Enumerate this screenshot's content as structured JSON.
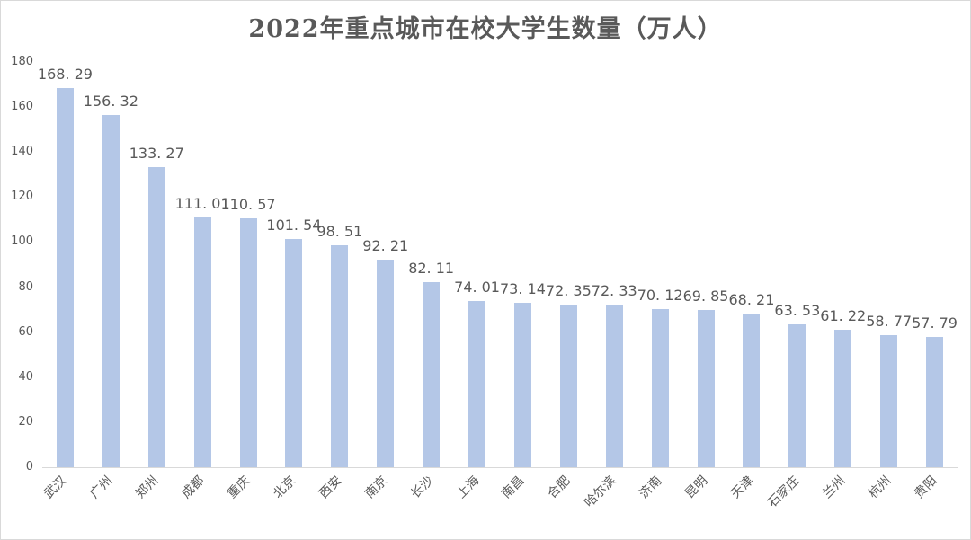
{
  "chart_data": {
    "type": "bar",
    "title": "2022年重点城市在校大学生数量（万人）",
    "categories": [
      "武汉",
      "广州",
      "郑州",
      "成都",
      "重庆",
      "北京",
      "西安",
      "南京",
      "长沙",
      "上海",
      "南昌",
      "合肥",
      "哈尔滨",
      "济南",
      "昆明",
      "天津",
      "石家庄",
      "兰州",
      "杭州",
      "贵阳"
    ],
    "values": [
      168.29,
      156.32,
      133.27,
      111.01,
      110.57,
      101.54,
      98.51,
      92.21,
      82.11,
      74.01,
      73.14,
      72.35,
      72.33,
      70.12,
      69.85,
      68.21,
      63.53,
      61.22,
      58.77,
      57.79
    ],
    "xlabel": "",
    "ylabel": "",
    "ylim": [
      0,
      180
    ],
    "ytick_step": 20,
    "ytick_labels": [
      "0",
      "20",
      "40",
      "60",
      "80",
      "100",
      "120",
      "140",
      "160",
      "180"
    ],
    "grid": false,
    "legend": "none",
    "data_labels": true,
    "category_label_rotation": -45,
    "colors": {
      "bar_fill": "#b4c7e7",
      "text": "#595959",
      "axis_line": "#d9d9d9",
      "frame_border": "#d9d9d9",
      "background": "#ffffff"
    }
  }
}
